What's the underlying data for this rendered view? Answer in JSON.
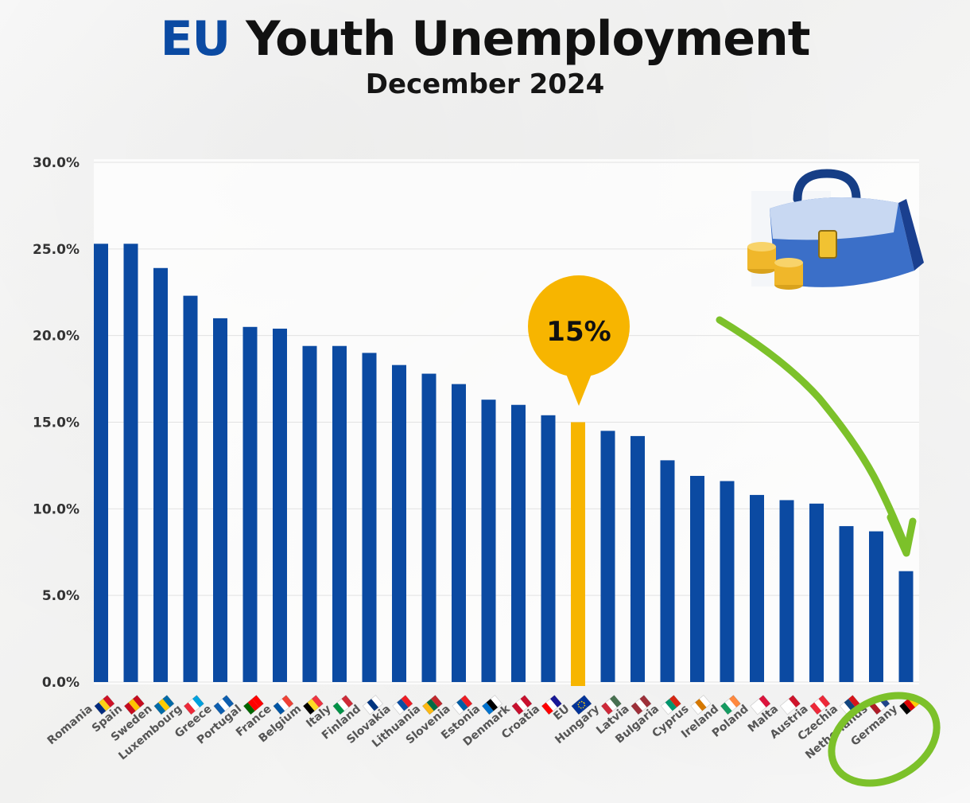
{
  "header": {
    "title_accent": "EU",
    "title_rest": "Youth Unemployment",
    "subtitle": "December 2024"
  },
  "callout": {
    "label": "15%",
    "target": "EU"
  },
  "colors": {
    "bar": "#0b4aa2",
    "highlight_bar": "#f7b500",
    "annotation": "#7cc12a",
    "callout": "#f7b500"
  },
  "chart_data": {
    "type": "bar",
    "title": "EU Youth Unemployment",
    "subtitle": "December 2024",
    "xlabel": "",
    "ylabel": "",
    "ylim": [
      0,
      30
    ],
    "yticks": [
      "0.0%",
      "5.0%",
      "10.0%",
      "15.0%",
      "20.0%",
      "25.0%",
      "30.0%"
    ],
    "grid": true,
    "highlight": "EU",
    "categories": [
      "Romania",
      "Spain",
      "Sweden",
      "Luxembourg",
      "Greece",
      "Portugal",
      "France",
      "Belgium",
      "Italy",
      "Finland",
      "Slovakia",
      "Lithuania",
      "Slovenia",
      "Estonia",
      "Denmark",
      "Croatia",
      "EU",
      "Hungary",
      "Latvia",
      "Bulgaria",
      "Cyprus",
      "Ireland",
      "Poland",
      "Malta",
      "Austria",
      "Czechia",
      "Netherlands",
      "Germany"
    ],
    "values": [
      25.3,
      25.3,
      23.9,
      22.3,
      21.0,
      20.5,
      20.4,
      19.4,
      19.4,
      19.0,
      18.3,
      17.8,
      17.2,
      16.3,
      16.0,
      15.4,
      15.0,
      14.5,
      14.2,
      12.8,
      11.9,
      11.6,
      10.8,
      10.5,
      10.3,
      9.0,
      8.7,
      6.4
    ]
  },
  "flags": {
    "Romania": [
      "#002b7f",
      "#fcd116",
      "#ce1126"
    ],
    "Spain": [
      "#c60b1e",
      "#ffc400",
      "#c60b1e"
    ],
    "Sweden": [
      "#006aa7",
      "#fecc00",
      "#006aa7"
    ],
    "Luxembourg": [
      "#ed2939",
      "#ffffff",
      "#00a1de"
    ],
    "Greece": [
      "#0d5eaf",
      "#ffffff",
      "#0d5eaf"
    ],
    "Portugal": [
      "#006600",
      "#ff0000",
      "#ff0000"
    ],
    "France": [
      "#0055a4",
      "#ffffff",
      "#ef4135"
    ],
    "Belgium": [
      "#000000",
      "#fdda24",
      "#ef3340"
    ],
    "Italy": [
      "#009246",
      "#ffffff",
      "#ce2b37"
    ],
    "Finland": [
      "#ffffff",
      "#003580",
      "#ffffff"
    ],
    "Slovakia": [
      "#ffffff",
      "#0b4ea2",
      "#ee1c25"
    ],
    "Lithuania": [
      "#fdb913",
      "#006a44",
      "#c1272d"
    ],
    "Slovenia": [
      "#ffffff",
      "#005da4",
      "#ed1c24"
    ],
    "Estonia": [
      "#0072ce",
      "#000000",
      "#ffffff"
    ],
    "Denmark": [
      "#c8102e",
      "#ffffff",
      "#c8102e"
    ],
    "Croatia": [
      "#ff0000",
      "#ffffff",
      "#171796"
    ],
    "EU": [
      "#003399",
      "#003399",
      "#003399"
    ],
    "Hungary": [
      "#ce2939",
      "#ffffff",
      "#477050"
    ],
    "Latvia": [
      "#9e3039",
      "#ffffff",
      "#9e3039"
    ],
    "Bulgaria": [
      "#ffffff",
      "#00966e",
      "#d62612"
    ],
    "Cyprus": [
      "#ffffff",
      "#d57800",
      "#ffffff"
    ],
    "Ireland": [
      "#169b62",
      "#ffffff",
      "#ff883e"
    ],
    "Poland": [
      "#ffffff",
      "#ffffff",
      "#dc143c"
    ],
    "Malta": [
      "#ffffff",
      "#ffffff",
      "#cf142b"
    ],
    "Austria": [
      "#ed2939",
      "#ffffff",
      "#ed2939"
    ],
    "Czechia": [
      "#ffffff",
      "#11457e",
      "#d7141a"
    ],
    "Netherlands": [
      "#ae1c28",
      "#ffffff",
      "#21468b"
    ],
    "Germany": [
      "#000000",
      "#dd0000",
      "#ffce00"
    ]
  }
}
